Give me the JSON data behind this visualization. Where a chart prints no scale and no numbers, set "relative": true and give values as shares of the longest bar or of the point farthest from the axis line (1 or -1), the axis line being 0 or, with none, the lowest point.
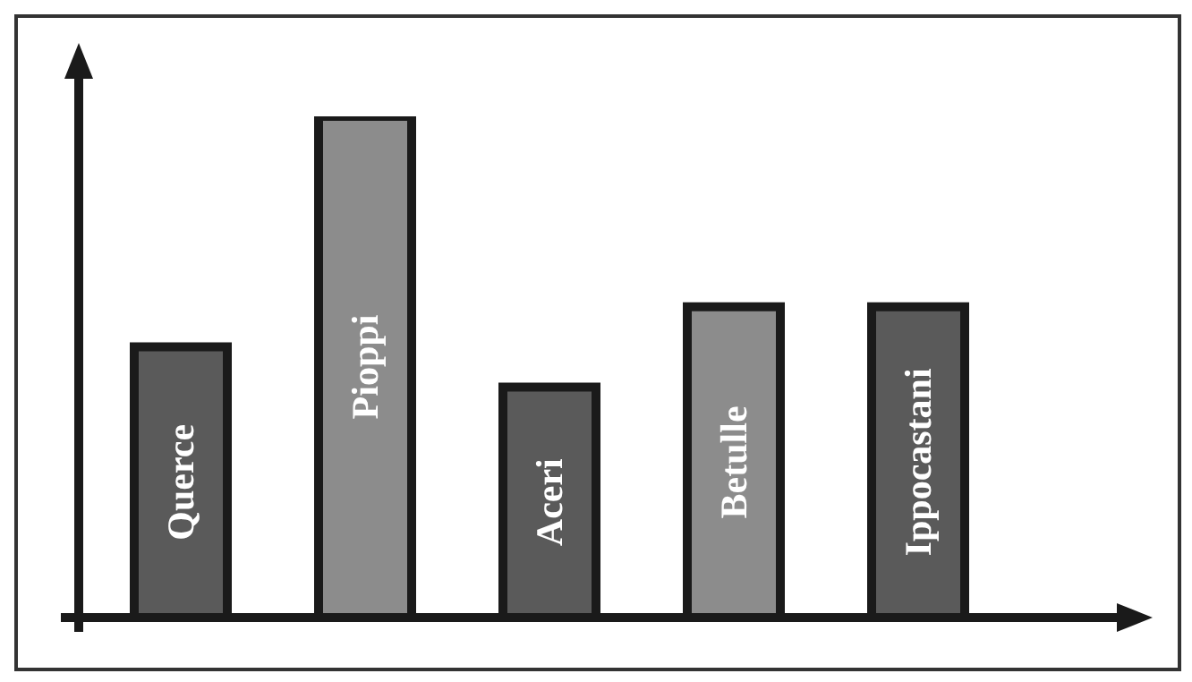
{
  "chart_data": {
    "type": "bar",
    "relative": true,
    "categories": [
      "Querce",
      "Pioppi",
      "Aceri",
      "Betulle",
      "Ippocastani"
    ],
    "values": [
      0.54,
      1,
      0.46,
      0.62,
      0.62
    ],
    "colors": [
      "#5a5a5a",
      "#8c8c8c",
      "#5a5a5a",
      "#8c8c8c",
      "#5a5a5a"
    ]
  }
}
